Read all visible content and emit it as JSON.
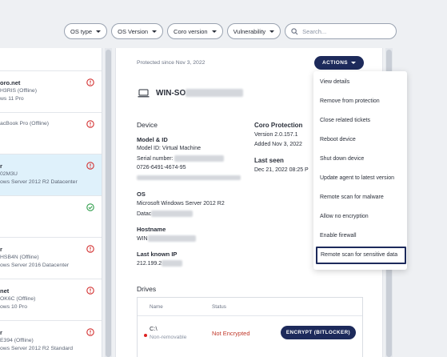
{
  "filters": {
    "os_type": "OS type",
    "os_version": "OS Version",
    "coro_version": "Coro version",
    "vulnerability": "Vulnerability",
    "search_placeholder": "Search..."
  },
  "device_list": [
    {
      "name": "oro.net",
      "line1": "H3RIS (Offline)",
      "line2": "ws 11 Pro",
      "status": "alert"
    },
    {
      "name": "",
      "line1": "",
      "line2": "acBook Pro (Offline)",
      "status": "alert"
    },
    {
      "name": "r",
      "line1": "02M3U",
      "line2": "ows Server 2012 R2 Datacenter",
      "status": "alert"
    },
    {
      "name": "",
      "line1": "",
      "line2": "",
      "status": "ok"
    },
    {
      "name": "r",
      "line1": "HSB4N (Offline)",
      "line2": "ows Server 2016 Datacenter",
      "status": "alert"
    },
    {
      "name": "net",
      "line1": "OK6C (Offline)",
      "line2": "ows 10 Pro",
      "status": "alert"
    },
    {
      "name": "r",
      "line1": "E394 (Offline)",
      "line2": "ows Server 2012 R2 Standard",
      "status": "alert"
    }
  ],
  "detail": {
    "protected_since": "Protected since Nov 3, 2022",
    "actions_label": "ACTIONS",
    "hostname_prefix": "WIN-SO",
    "device_heading": "Device",
    "model_id_label": "Model & ID",
    "model_id": "Model ID: Virtual Machine",
    "serial_label": "Serial number:",
    "serial_line": "0726-6491-4674-95",
    "coro_heading": "Coro Protection",
    "coro_version": "Version 2.0.157.1",
    "coro_added": "Added Nov 3, 2022",
    "os_heading": "OS",
    "os_name": "Microsoft Windows Server 2012 R2",
    "os_edition": "Datac",
    "last_seen_heading": "Last seen",
    "last_seen_value": "Dec 21, 2022 08:25 P",
    "hostname_heading": "Hostname",
    "hostname_value": "WIN",
    "last_ip_heading": "Last known IP",
    "last_ip_value": "212.199.2"
  },
  "drives": {
    "heading": "Drives",
    "col_name": "Name",
    "col_status": "Status",
    "drive_name": "C:\\",
    "drive_type": "Non-removable",
    "drive_status": "Not Encrypted",
    "encrypt_label": "ENCRYPT (BITLOCKER)",
    "status_color": "#c0392b"
  },
  "actions_menu": [
    "View details",
    "Remove from protection",
    "Close related tickets",
    "Reboot device",
    "Shut down device",
    "Update agent to latest version",
    "Remote scan for malware",
    "Allow no encryption",
    "Enable firewall",
    "Remote scan for sensitive data"
  ],
  "colors": {
    "brand_navy": "#1d2a5b",
    "alert_red": "#d32f2f",
    "ok_green": "#2e9d4a",
    "selected_row": "#dff1fb"
  }
}
